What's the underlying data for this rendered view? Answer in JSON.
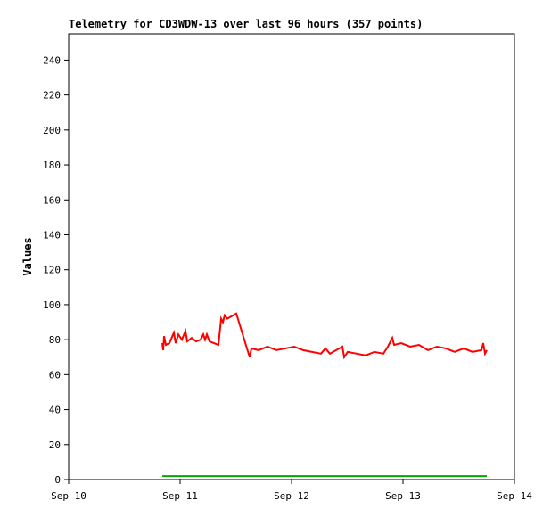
{
  "chart_data": {
    "type": "line",
    "title": "Telemetry for CD3WDW-13 over last 96 hours (357 points)",
    "y_label": "Values",
    "xlim": [
      10,
      14
    ],
    "xticks": [
      {
        "value": 10,
        "label": "Sep 10"
      },
      {
        "value": 11,
        "label": "Sep 11"
      },
      {
        "value": 12,
        "label": "Sep 12"
      },
      {
        "value": 13,
        "label": "Sep 13"
      },
      {
        "value": 14,
        "label": "Sep 14"
      }
    ],
    "ylim": [
      0,
      255
    ],
    "yticks": [
      0,
      20,
      40,
      60,
      80,
      100,
      120,
      140,
      160,
      180,
      200,
      220,
      240
    ],
    "series": [
      {
        "color": "#ff0000",
        "x": [
          10.84,
          10.848,
          10.856,
          10.872,
          10.904,
          10.944,
          10.96,
          10.984,
          11.016,
          11.048,
          11.064,
          11.104,
          11.144,
          11.184,
          11.208,
          11.224,
          11.24,
          11.264,
          11.304,
          11.344,
          11.368,
          11.384,
          11.4,
          11.424,
          11.504,
          11.624,
          11.64,
          11.704,
          11.784,
          11.864,
          11.944,
          12.024,
          12.104,
          12.184,
          12.264,
          12.304,
          12.344,
          12.456,
          12.472,
          12.504,
          12.584,
          12.664,
          12.744,
          12.824,
          12.864,
          12.904,
          12.92,
          12.984,
          13.064,
          13.144,
          13.224,
          13.304,
          13.384,
          13.464,
          13.544,
          13.624,
          13.704,
          13.72,
          13.736,
          13.752
        ],
        "values": [
          78,
          74,
          82,
          77,
          78,
          84,
          78,
          83,
          80,
          85,
          79,
          81,
          79,
          80,
          83,
          80,
          83,
          79,
          78,
          77,
          92,
          90,
          94,
          92,
          95,
          70,
          75,
          74,
          76,
          74,
          75,
          76,
          74,
          73,
          72,
          75,
          72,
          76,
          70,
          73,
          72,
          71,
          73,
          72,
          76,
          81,
          77,
          78,
          76,
          77,
          74,
          76,
          75,
          73,
          75,
          73,
          74,
          78,
          72,
          74
        ]
      },
      {
        "color": "#00aa00",
        "x": [
          10.84,
          13.752
        ],
        "values": [
          2,
          2
        ]
      }
    ]
  }
}
